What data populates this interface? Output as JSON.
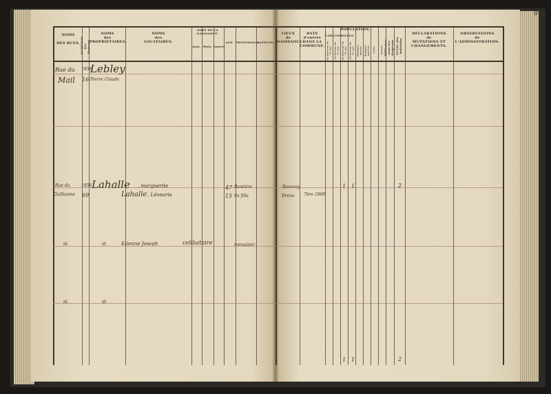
{
  "page_number": "80",
  "left_headers": {
    "rues": [
      "NOMS",
      "DES RUES."
    ],
    "numeros": [
      "NUMÉROS",
      "des Maisons."
    ],
    "proprietaires": [
      "NOMS",
      "des",
      "PROPRIÉTAIRES."
    ],
    "locataires": [
      "NOMS",
      "des",
      "LOCATAIRES."
    ],
    "naissance": "DATE DE LA NAISSANCE.",
    "jour": "Jour.",
    "mois": "Mois.",
    "annee": "Année.",
    "age": "AGE.",
    "profession": "PROFESSION.",
    "patente": "PATENTE."
  },
  "right_headers": {
    "lieux": [
      "LIEUX",
      "de",
      "NAISSANCE."
    ],
    "date_entree": [
      "DATE",
      "d'entrée",
      "DANS LA COMMUNE."
    ],
    "population": "POPULATION.",
    "garcons": "GARÇONS.",
    "filles": "FILLES.",
    "sub_cols": [
      "Au-dessous de 15 ans",
      "Au-dessus de 15 ans",
      "Au-dessous de 15 ans",
      "Au-dessus de 15 ans",
      "Hommes mariés",
      "Femmes mariées",
      "Veufs.",
      "Veuves."
    ],
    "militaires": "Militaires sous les drapeaux",
    "total": "TOTAL des individus",
    "declarations": [
      "DÉCLARATIONS",
      "de",
      "MUTATIONS ET CHANGEMENTS."
    ],
    "observations": [
      "OBSERVATIONS",
      "de",
      "L'ADMINISTRATION."
    ]
  },
  "entries": [
    {
      "rue": "Rue du",
      "rue2": "Mail",
      "numero": "1856",
      "numero2": "16",
      "proprietaire": "Lebley",
      "proprietaire2": "Pierre Claude"
    },
    {
      "rue": "Rue du",
      "rue2": "Guillaume",
      "numero": "1856",
      "numero2": "69",
      "proprietaire": "Lahalle",
      "prenom": ", marguerite",
      "locataire": "Lahalle",
      "prenom2": ", Léonarie",
      "age": "47",
      "age2": "15",
      "profession": "Rentière",
      "profession2": "Sa fille",
      "lieu": "Rouvray",
      "lieu2": "Dreux",
      "date_entree": "7bre 1860",
      "pop1": "1",
      "pop2": "1",
      "total": "2"
    },
    {
      "rue": "id.",
      "numero": "id.",
      "locataire": "Etienne Joseph",
      "extra": "celibataire",
      "profession": "menuisier"
    },
    {
      "rue": "id.",
      "numero": "id."
    }
  ],
  "totals": {
    "pop1": "1",
    "pop2": "1",
    "total": "2"
  }
}
